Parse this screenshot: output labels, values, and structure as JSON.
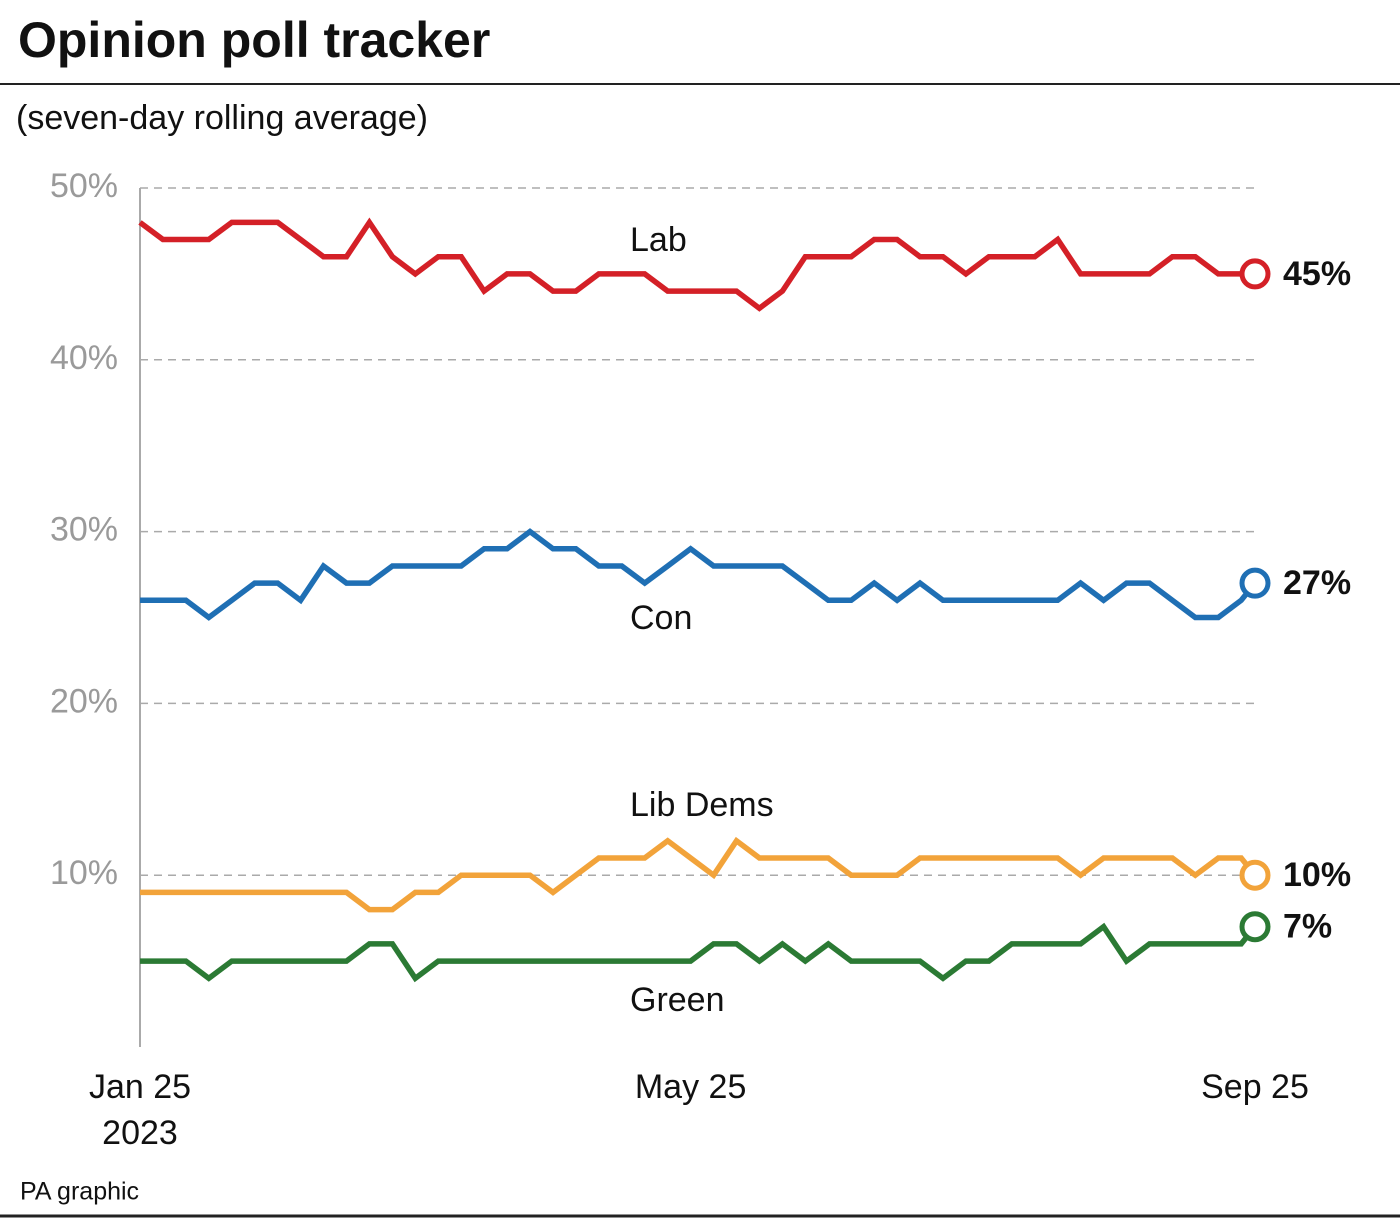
{
  "chart_data": {
    "type": "line",
    "title": "Opinion poll tracker",
    "subtitle": "(seven-day rolling average)",
    "source": "PA graphic",
    "x": [
      "2023-01-25",
      "2023-01-30",
      "2023-02-04",
      "2023-02-09",
      "2023-02-14",
      "2023-02-19",
      "2023-02-24",
      "2023-03-01",
      "2023-03-06",
      "2023-03-11",
      "2023-03-16",
      "2023-03-21",
      "2023-03-26",
      "2023-03-31",
      "2023-04-05",
      "2023-04-10",
      "2023-04-15",
      "2023-04-20",
      "2023-04-25",
      "2023-04-30",
      "2023-05-05",
      "2023-05-10",
      "2023-05-15",
      "2023-05-20",
      "2023-05-25",
      "2023-05-30",
      "2023-06-04",
      "2023-06-09",
      "2023-06-14",
      "2023-06-19",
      "2023-06-24",
      "2023-06-29",
      "2023-07-04",
      "2023-07-09",
      "2023-07-14",
      "2023-07-19",
      "2023-07-24",
      "2023-07-29",
      "2023-08-03",
      "2023-08-08",
      "2023-08-13",
      "2023-08-18",
      "2023-08-23",
      "2023-08-28",
      "2023-09-02",
      "2023-09-07",
      "2023-09-12",
      "2023-09-17",
      "2023-09-22",
      "2023-09-25"
    ],
    "xlim": [
      "2023-01-25",
      "2023-09-25"
    ],
    "xticks": [
      {
        "value": "2023-01-25",
        "label": "Jan 25 2023"
      },
      {
        "value": "2023-05-25",
        "label": "May 25"
      },
      {
        "value": "2023-09-25",
        "label": "Sep 25"
      }
    ],
    "ylim": [
      0,
      50
    ],
    "yticks": [
      {
        "value": 10,
        "label": "10%"
      },
      {
        "value": 20,
        "label": "20%"
      },
      {
        "value": 30,
        "label": "30%"
      },
      {
        "value": 40,
        "label": "40%"
      },
      {
        "value": 50,
        "label": "50%"
      }
    ],
    "grid": true,
    "series": [
      {
        "name": "Lab",
        "color": "#d42027",
        "values": [
          48,
          47,
          47,
          47,
          48,
          48,
          48,
          47,
          46,
          46,
          48,
          46,
          45,
          46,
          46,
          44,
          45,
          45,
          44,
          44,
          45,
          45,
          45,
          44,
          44,
          44,
          44,
          43,
          44,
          46,
          46,
          46,
          47,
          47,
          46,
          46,
          45,
          46,
          46,
          46,
          47,
          45,
          45,
          45,
          45,
          46,
          46,
          45,
          45,
          45
        ],
        "value_labels": [
          null,
          null,
          null,
          null,
          null,
          null,
          null,
          null,
          null,
          null,
          null,
          null,
          null,
          null,
          null,
          null,
          null,
          null,
          null,
          null,
          null,
          null,
          null,
          null,
          null,
          null,
          null,
          null,
          null,
          null,
          null,
          null,
          null,
          null,
          null,
          null,
          null,
          null,
          null,
          null,
          null,
          null,
          null,
          null,
          null,
          null,
          null,
          null,
          null,
          "45%"
        ]
      },
      {
        "name": "Con",
        "color": "#1f6fb4",
        "values": [
          26,
          26,
          26,
          25,
          26,
          27,
          27,
          26,
          28,
          27,
          27,
          28,
          28,
          28,
          28,
          29,
          29,
          30,
          29,
          29,
          28,
          28,
          27,
          28,
          29,
          28,
          28,
          28,
          28,
          27,
          26,
          26,
          27,
          26,
          27,
          26,
          26,
          26,
          26,
          26,
          26,
          27,
          26,
          27,
          27,
          26,
          25,
          25,
          26,
          27
        ],
        "value_labels": [
          null,
          null,
          null,
          null,
          null,
          null,
          null,
          null,
          null,
          null,
          null,
          null,
          null,
          null,
          null,
          null,
          null,
          null,
          null,
          null,
          null,
          null,
          null,
          null,
          null,
          null,
          null,
          null,
          null,
          null,
          null,
          null,
          null,
          null,
          null,
          null,
          null,
          null,
          null,
          null,
          null,
          null,
          null,
          null,
          null,
          null,
          null,
          null,
          null,
          "27%"
        ]
      },
      {
        "name": "Lib Dems",
        "color": "#f2a33a",
        "values": [
          9,
          9,
          9,
          9,
          9,
          9,
          9,
          9,
          9,
          9,
          8,
          8,
          9,
          9,
          10,
          10,
          10,
          10,
          9,
          10,
          11,
          11,
          11,
          12,
          11,
          10,
          12,
          11,
          11,
          11,
          11,
          10,
          10,
          10,
          11,
          11,
          11,
          11,
          11,
          11,
          11,
          10,
          11,
          11,
          11,
          11,
          10,
          11,
          11,
          10
        ],
        "value_labels": [
          null,
          null,
          null,
          null,
          null,
          null,
          null,
          null,
          null,
          null,
          null,
          null,
          null,
          null,
          null,
          null,
          null,
          null,
          null,
          null,
          null,
          null,
          null,
          null,
          null,
          null,
          null,
          null,
          null,
          null,
          null,
          null,
          null,
          null,
          null,
          null,
          null,
          null,
          null,
          null,
          null,
          null,
          null,
          null,
          null,
          null,
          null,
          null,
          null,
          "10%"
        ]
      },
      {
        "name": "Green",
        "color": "#2b7a34",
        "values": [
          5,
          5,
          5,
          4,
          5,
          5,
          5,
          5,
          5,
          5,
          6,
          6,
          4,
          5,
          5,
          5,
          5,
          5,
          5,
          5,
          5,
          5,
          5,
          5,
          5,
          6,
          6,
          5,
          6,
          5,
          6,
          5,
          5,
          5,
          5,
          4,
          5,
          5,
          6,
          6,
          6,
          6,
          7,
          5,
          6,
          6,
          6,
          6,
          6,
          7
        ],
        "value_labels": [
          null,
          null,
          null,
          null,
          null,
          null,
          null,
          null,
          null,
          null,
          null,
          null,
          null,
          null,
          null,
          null,
          null,
          null,
          null,
          null,
          null,
          null,
          null,
          null,
          null,
          null,
          null,
          null,
          null,
          null,
          null,
          null,
          null,
          null,
          null,
          null,
          null,
          null,
          null,
          null,
          null,
          null,
          null,
          null,
          null,
          null,
          null,
          null,
          null,
          "7%"
        ]
      }
    ]
  }
}
